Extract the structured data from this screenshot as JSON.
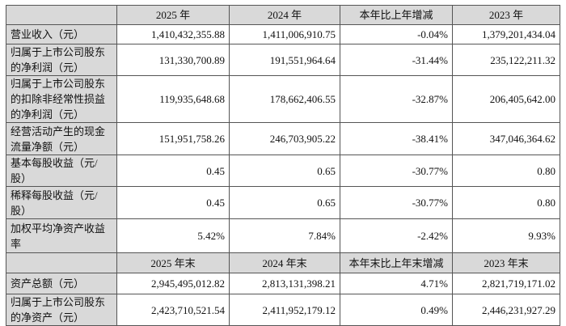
{
  "header": [
    "",
    "2025 年",
    "2024 年",
    "本年比上年增减",
    "2023 年"
  ],
  "rows": [
    {
      "label": "营业收入（元）",
      "values": [
        "1,410,432,355.88",
        "1,411,006,910.75",
        "-0.04%",
        "1,379,201,434.04"
      ]
    },
    {
      "label": "归属于上市公司股东的净利润（元）",
      "values": [
        "131,330,700.89",
        "191,551,964.64",
        "-31.44%",
        "235,122,211.32"
      ]
    },
    {
      "label": "归属于上市公司股东的扣除非经常性损益的净利润（元）",
      "values": [
        "119,935,648.68",
        "178,662,406.55",
        "-32.87%",
        "206,405,642.00"
      ]
    },
    {
      "label": "经营活动产生的现金流量净额（元）",
      "values": [
        "151,951,758.26",
        "246,703,905.22",
        "-38.41%",
        "347,046,364.62"
      ]
    },
    {
      "label": "基本每股收益（元/股）",
      "values": [
        "0.45",
        "0.65",
        "-30.77%",
        "0.80"
      ]
    },
    {
      "label": "稀释每股收益（元/股）",
      "values": [
        "0.45",
        "0.65",
        "-30.77%",
        "0.80"
      ]
    },
    {
      "label": "加权平均净资产收益率",
      "values": [
        "5.42%",
        "7.84%",
        "-2.42%",
        "9.93%"
      ]
    }
  ],
  "header2": [
    "",
    "2025 年末",
    "2024 年末",
    "本年末比上年末增减",
    "2023 年末"
  ],
  "rows2": [
    {
      "label": "资产总额（元）",
      "values": [
        "2,945,495,012.82",
        "2,813,131,398.21",
        "4.71%",
        "2,821,719,171.02"
      ]
    },
    {
      "label": "归属于上市公司股东的净资产（元）",
      "values": [
        "2,423,710,521.54",
        "2,411,952,179.12",
        "0.49%",
        "2,446,231,927.29"
      ]
    }
  ]
}
